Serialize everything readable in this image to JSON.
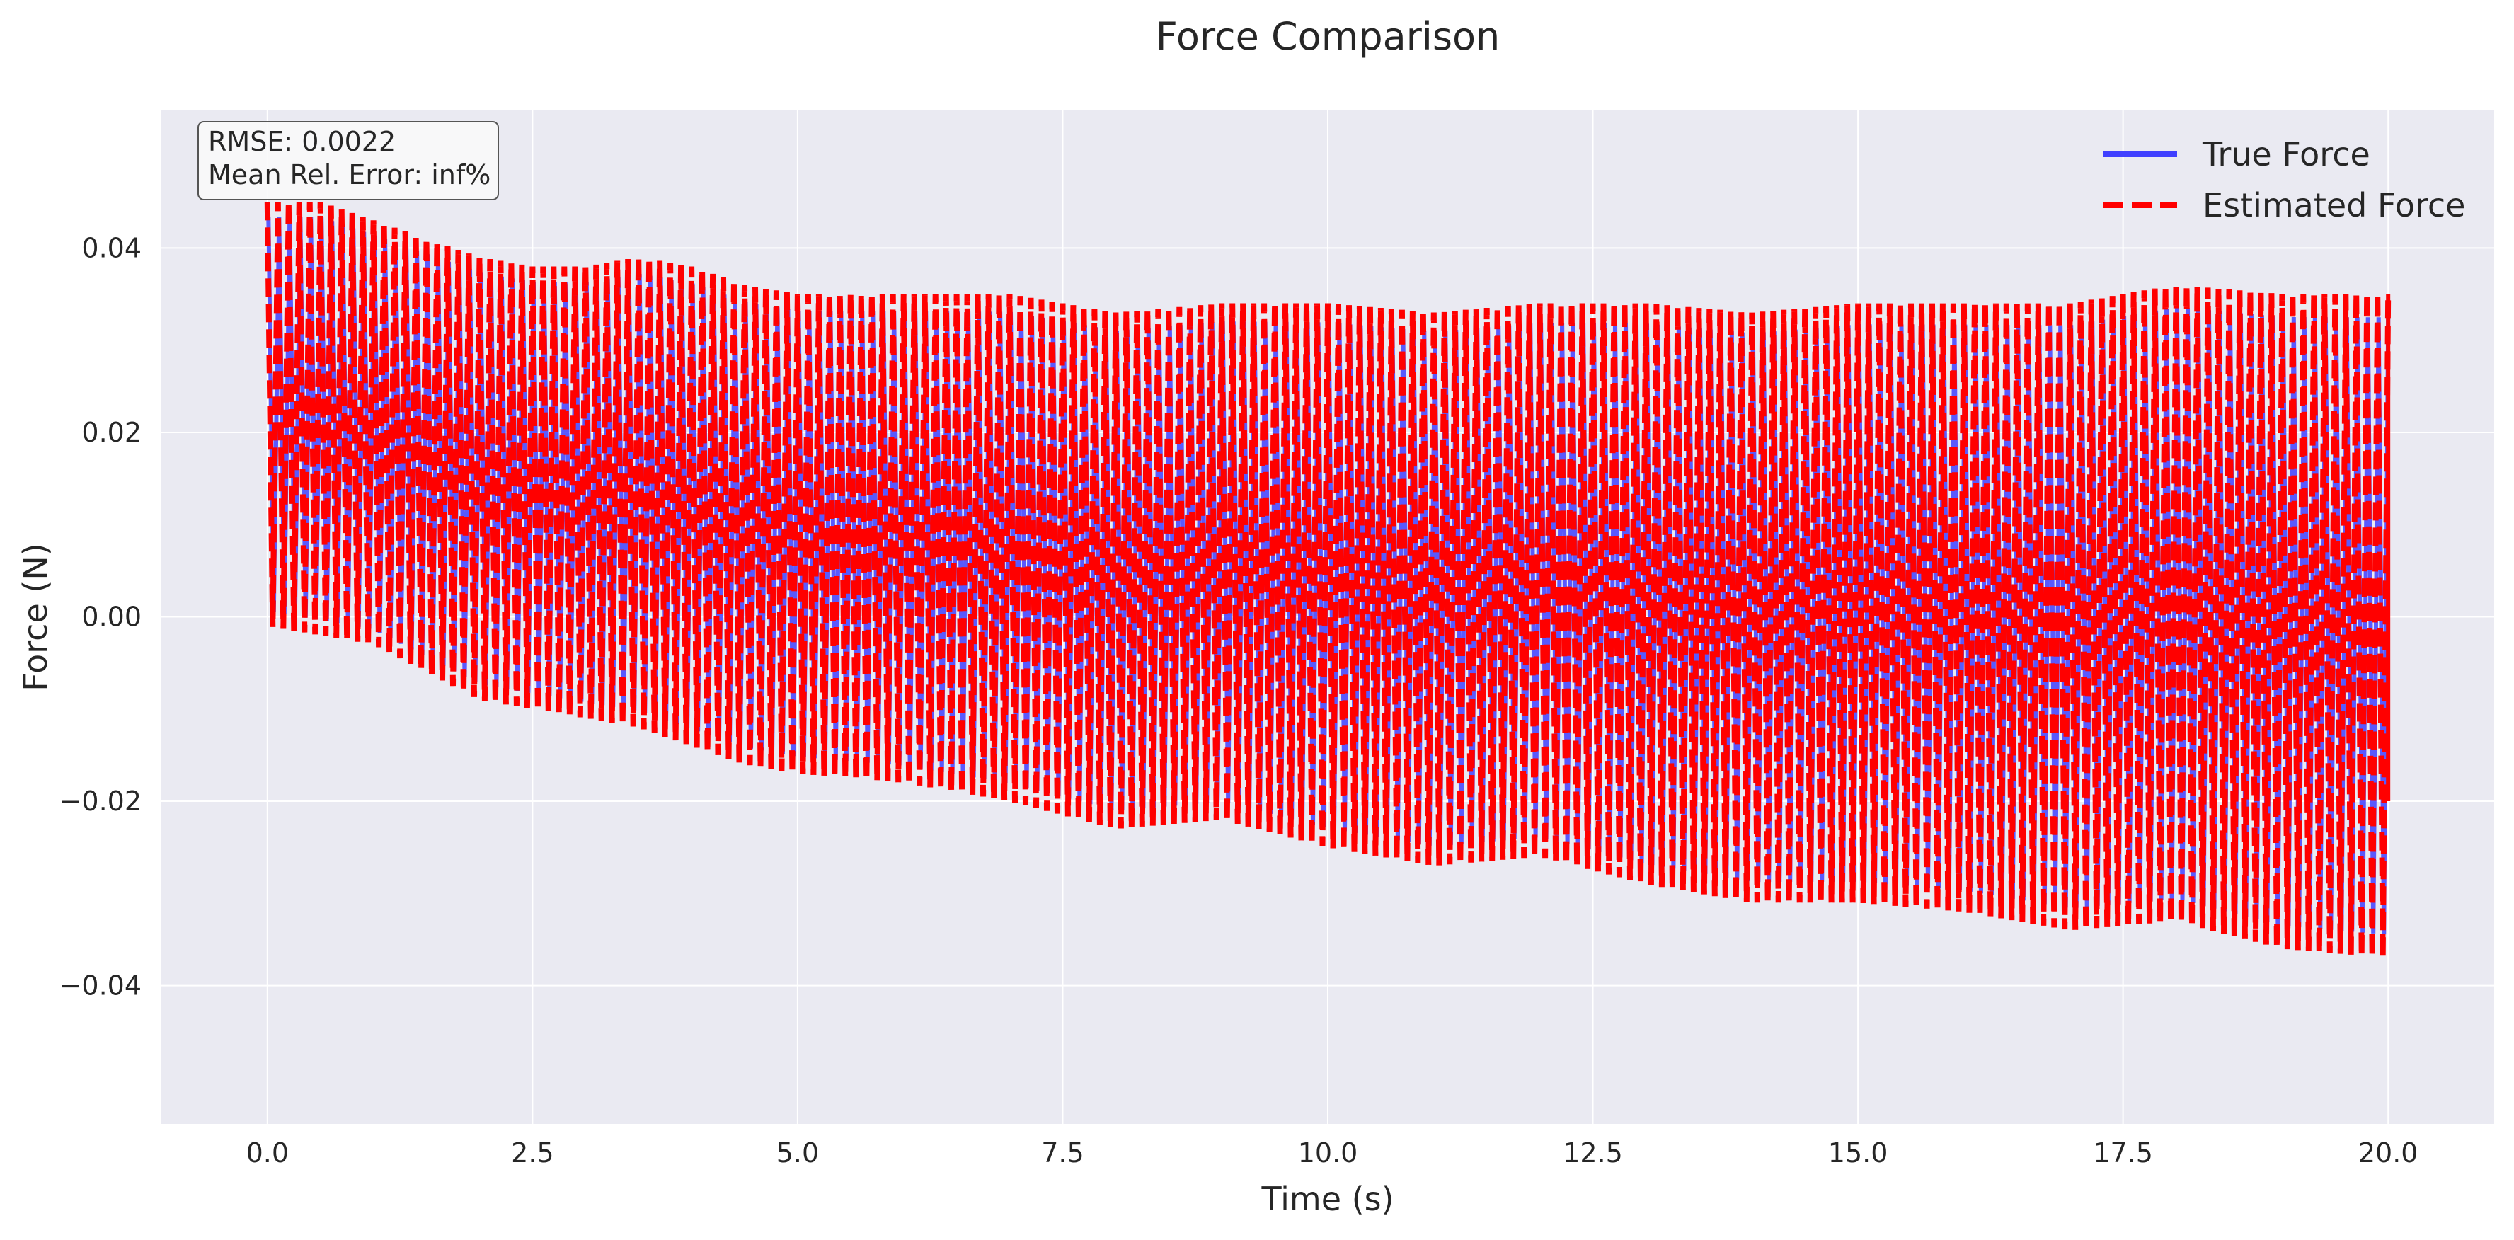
{
  "chart_data": {
    "type": "line",
    "title": "Force Comparison",
    "xlabel": "Time (s)",
    "ylabel": "Force (N)",
    "xlim": [
      -1.0,
      21.0
    ],
    "ylim": [
      -0.055,
      0.055
    ],
    "xticks": [
      0.0,
      2.5,
      5.0,
      7.5,
      10.0,
      12.5,
      15.0,
      17.5,
      20.0
    ],
    "xtick_labels": [
      "0.0",
      "2.5",
      "5.0",
      "7.5",
      "10.0",
      "12.5",
      "15.0",
      "17.5",
      "20.0"
    ],
    "yticks": [
      -0.04,
      -0.02,
      0.0,
      0.02,
      0.04
    ],
    "ytick_labels": [
      "−0.04",
      "−0.02",
      "0.00",
      "0.02",
      "0.04"
    ],
    "grid": true,
    "legend_position": "top-right",
    "annotation_lines": [
      "RMSE: 0.0022",
      "Mean Rel. Error: inf%"
    ],
    "x_range": [
      0.0,
      20.0
    ],
    "oscillation_cycles": 200,
    "upper_envelope": {
      "x": [
        0.0,
        0.5,
        1.0,
        1.5,
        2.0,
        2.5,
        3.0,
        3.5,
        4.0,
        4.5,
        5.0,
        6.0,
        7.0,
        8.0,
        9.0,
        10.0,
        11.0,
        12.0,
        13.0,
        14.0,
        15.0,
        16.0,
        17.0,
        18.0,
        19.0,
        20.0
      ],
      "y": [
        0.045,
        0.045,
        0.043,
        0.041,
        0.039,
        0.038,
        0.038,
        0.039,
        0.038,
        0.036,
        0.035,
        0.035,
        0.035,
        0.033,
        0.034,
        0.034,
        0.033,
        0.034,
        0.034,
        0.033,
        0.034,
        0.034,
        0.034,
        0.036,
        0.035,
        0.035
      ]
    },
    "lower_envelope": {
      "x": [
        0.0,
        0.5,
        1.0,
        1.5,
        2.0,
        2.5,
        3.0,
        3.5,
        4.0,
        4.5,
        5.0,
        6.0,
        7.0,
        8.0,
        9.0,
        10.0,
        11.0,
        12.0,
        13.0,
        14.0,
        15.0,
        16.0,
        17.0,
        18.0,
        19.0,
        20.0
      ],
      "y": [
        -0.001,
        -0.002,
        -0.003,
        -0.006,
        -0.009,
        -0.01,
        -0.011,
        -0.012,
        -0.014,
        -0.016,
        -0.017,
        -0.018,
        -0.02,
        -0.023,
        -0.022,
        -0.025,
        -0.027,
        -0.026,
        -0.029,
        -0.031,
        -0.031,
        -0.032,
        -0.034,
        -0.033,
        -0.036,
        -0.037
      ]
    },
    "series": [
      {
        "name": "True Force",
        "color": "#4040ff",
        "style": "solid"
      },
      {
        "name": "Estimated Force",
        "color": "#ff0000",
        "style": "dashed"
      }
    ]
  },
  "colors": {
    "plot_background": "#eaeaf2",
    "grid": "#ffffff",
    "true_force": "#4040ff",
    "estimated_force": "#ff0000"
  }
}
